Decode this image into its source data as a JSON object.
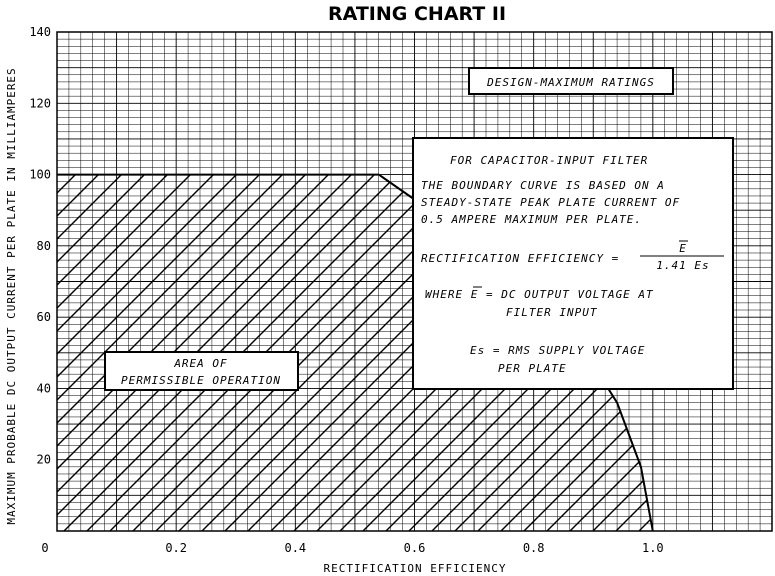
{
  "chart_data": {
    "type": "line",
    "title": "RATING CHART II",
    "xlabel": "RECTIFICATION EFFICIENCY",
    "ylabel": "MAXIMUM PROBABLE DC OUTPUT CURRENT PER PLATE IN MILLIAMPERES",
    "xlim": [
      0,
      1.2
    ],
    "ylim": [
      0,
      140
    ],
    "x_ticks": [
      "0",
      "0.2",
      "0.4",
      "0.6",
      "0.8",
      "1.0"
    ],
    "y_ticks": [
      "20",
      "40",
      "60",
      "80",
      "100",
      "120",
      "140"
    ],
    "grid": true,
    "series": [
      {
        "x": [
          0,
          0.54,
          0.6,
          0.7,
          0.8,
          0.88,
          0.94,
          0.98,
          1.0
        ],
        "y": [
          100,
          100,
          93,
          81,
          67,
          52,
          36,
          18,
          0
        ]
      }
    ],
    "annotations": {
      "ratings_box": "DESIGN-MAXIMUM RATINGS",
      "area_box_line1": "AREA OF",
      "area_box_line2": "PERMISSIBLE OPERATION",
      "info_header": "FOR CAPACITOR-INPUT FILTER",
      "info_line1": "THE BOUNDARY CURVE IS BASED ON A",
      "info_line2": "STEADY-STATE PEAK PLATE CURRENT OF",
      "info_line3": "0.5 AMPERE MAXIMUM PER PLATE.",
      "formula_label": "RECTIFICATION EFFICIENCY =",
      "formula_num": "E",
      "formula_den": "1.41 Es",
      "where_line1": "WHERE E = DC OUTPUT VOLTAGE AT",
      "where_line2": "FILTER INPUT",
      "es_line1": "Es = RMS SUPPLY VOLTAGE",
      "es_line2": "PER PLATE"
    }
  }
}
